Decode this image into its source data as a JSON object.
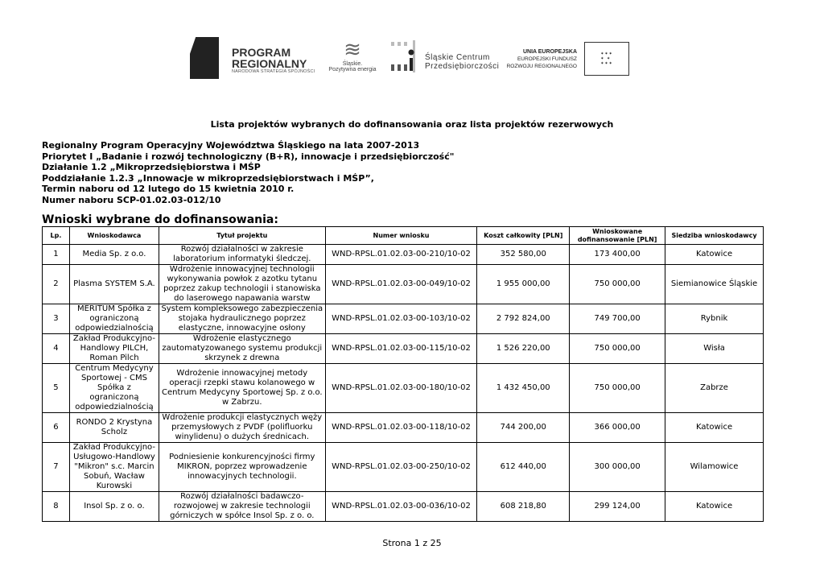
{
  "logos": {
    "program": {
      "line1": "PROGRAM",
      "line2": "REGIONALNY",
      "line3": "NARODOWA STRATEGIA SPÓJNOŚCI"
    },
    "slaskie": {
      "line1": "Śląskie.",
      "line2": "Pozytywna energia"
    },
    "scp": {
      "line1": "Śląskie Centrum",
      "line2": "Przedsiębiorczości"
    },
    "ue": {
      "line1": "UNIA EUROPEJSKA",
      "line2": "EUROPEJSKI FUNDUSZ",
      "line3": "ROZWOJU REGIONALNEGO"
    }
  },
  "title": "Lista projektów wybranych do dofinansowania oraz lista projektów rezerwowych",
  "info": [
    "Regionalny Program Operacyjny Województwa Śląskiego na lata 2007-2013",
    "Priorytet I „Badanie i rozwój technologiczny (B+R), innowacje i przedsiębiorczość\"",
    "Działanie 1.2 „Mikroprzedsiębiorstwa i MŚP",
    "Poddziałanie 1.2.3 „Innowacje w mikroprzedsiębiorstwach i MŚP”,",
    "Termin naboru od 12 lutego do 15 kwietnia 2010 r.",
    "Numer naboru SCP-01.02.03-012/10"
  ],
  "section_title": "Wnioski wybrane do dofinansowania:",
  "table": {
    "headers": [
      "Lp.",
      "Wnioskodawca",
      "Tytuł projektu",
      "Numer wniosku",
      "Koszt całkowity [PLN]",
      "Wnioskowane dofinansowanie [PLN]",
      "Siedziba wnioskodawcy"
    ],
    "rows": [
      [
        "1",
        "Media Sp. z o.o.",
        "Rozwój działalności w zakresie laboratorium informatyki śledczej.",
        "WND-RPSL.01.02.03-00-210/10-02",
        "352 580,00",
        "173 400,00",
        "Katowice"
      ],
      [
        "2",
        "Plasma SYSTEM S.A.",
        "Wdrożenie innowacyjnej technologii wykonywania powłok z azotku tytanu poprzez zakup technologii i stanowiska do laserowego napawania warstw",
        "WND-RPSL.01.02.03-00-049/10-02",
        "1 955 000,00",
        "750 000,00",
        "Siemianowice Śląskie"
      ],
      [
        "3",
        "MERITUM Spółka z ograniczoną odpowiedzialnością",
        "System kompleksowego zabezpieczenia stojaka hydraulicznego poprzez elastyczne, innowacyjne osłony",
        "WND-RPSL.01.02.03-00-103/10-02",
        "2 792 824,00",
        "749 700,00",
        "Rybnik"
      ],
      [
        "4",
        "Zakład Produkcyjno-Handlowy PILCH, Roman Pilch",
        "Wdrożenie elastycznego zautomatyzowanego systemu produkcji skrzynek z drewna",
        "WND-RPSL.01.02.03-00-115/10-02",
        "1 526 220,00",
        "750 000,00",
        "Wisła"
      ],
      [
        "5",
        "Centrum Medycyny Sportowej - CMS Spółka z ograniczoną odpowiedzialnością",
        "Wdrożenie innowacyjnej metody operacji rzepki stawu kolanowego w Centrum Medycyny Sportowej Sp. z o.o. w Zabrzu.",
        "WND-RPSL.01.02.03-00-180/10-02",
        "1 432 450,00",
        "750 000,00",
        "Zabrze"
      ],
      [
        "6",
        "RONDO 2 Krystyna Scholz",
        "Wdrożenie produkcji elastycznych węży przemysłowych z PVDF (polifluorku winylidenu) o dużych średnicach.",
        "WND-RPSL.01.02.03-00-118/10-02",
        "744 200,00",
        "366 000,00",
        "Katowice"
      ],
      [
        "7",
        "Zakład Produkcyjno-Usługowo-Handlowy \"Mikron\" s.c. Marcin Sobuń, Wacław Kurowski",
        "Podniesienie konkurencyjności firmy MIKRON, poprzez wprowadzenie innowacyjnych technologii.",
        "WND-RPSL.01.02.03-00-250/10-02",
        "612 440,00",
        "300 000,00",
        "Wilamowice"
      ],
      [
        "8",
        "Insol Sp. z o. o.",
        "Rozwój działalności badawczo-rozwojowej w zakresie technologii górniczych w spółce Insol Sp. z o. o.",
        "WND-RPSL.01.02.03-00-036/10-02",
        "608 218,80",
        "299 124,00",
        "Katowice"
      ]
    ]
  },
  "footer": "Strona 1 z 25"
}
